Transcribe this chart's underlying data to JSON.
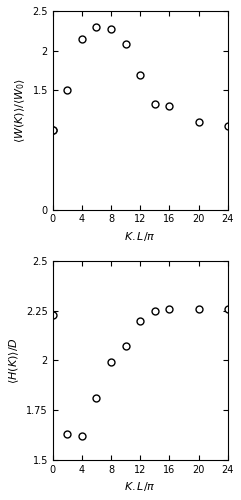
{
  "top": {
    "x": [
      0,
      0,
      2,
      4,
      6,
      8,
      10,
      12,
      14,
      16,
      20,
      24
    ],
    "y": [
      1.0,
      1.0,
      1.5,
      2.15,
      2.3,
      2.27,
      2.08,
      1.7,
      1.33,
      1.3,
      1.1,
      1.05
    ],
    "ylabel": "$\\langle W(K)\\rangle/\\langle W_0\\rangle$",
    "xlabel": "$K.L/\\pi$",
    "ylim": [
      0.0,
      2.5
    ],
    "xlim": [
      0,
      24
    ],
    "yticks": [
      0,
      1.5,
      2.0,
      2.5
    ],
    "yticklabels": [
      "0",
      "1.5",
      "2",
      "2.5"
    ],
    "xticks": [
      0,
      4,
      8,
      12,
      16,
      20,
      24
    ]
  },
  "bottom": {
    "x": [
      0,
      2,
      4,
      6,
      8,
      10,
      12,
      14,
      16,
      20,
      24
    ],
    "y": [
      2.23,
      1.63,
      1.62,
      1.81,
      1.99,
      2.07,
      2.2,
      2.25,
      2.26,
      2.26,
      2.26
    ],
    "ylabel": "$\\langle H(K)\\rangle/D$",
    "xlabel": "$K.L/\\pi$",
    "ylim": [
      1.5,
      2.5
    ],
    "xlim": [
      0,
      24
    ],
    "yticks": [
      1.5,
      1.75,
      2.0,
      2.25,
      2.5
    ],
    "yticklabels": [
      "1.5",
      "1.75",
      "2",
      "2.25",
      "2.5"
    ],
    "xticks": [
      0,
      4,
      8,
      12,
      16,
      20,
      24
    ]
  },
  "marker": "o",
  "markersize": 5,
  "markerfacecolor": "white",
  "markeredgecolor": "black",
  "markeredgewidth": 1.0,
  "tick_fontsize": 7,
  "label_fontsize": 8
}
